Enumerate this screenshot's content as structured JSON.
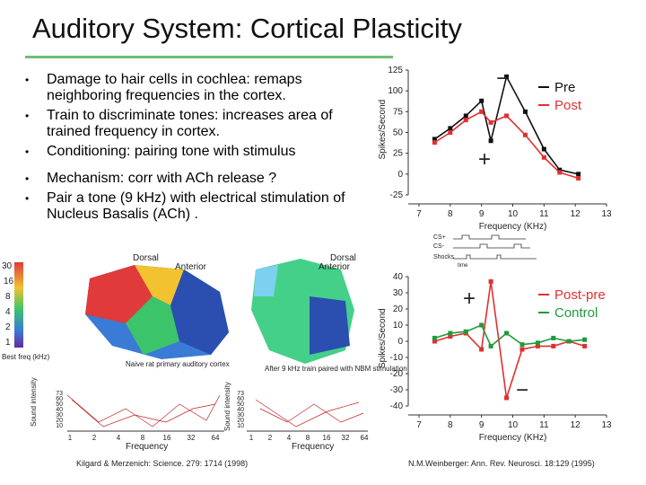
{
  "title": "Auditory System: Cortical Plasticity",
  "bullets": [
    "Damage to hair cells in cochlea: remaps neighboring frequencies in the cortex.",
    "Train to discriminate tones: increases area of trained frequency in cortex.",
    "Conditioning: pairing tone with stimulus",
    "Mechanism: corr with ACh release ?",
    "Pair a tone (9 kHz) with electrical stimulation of Nucleus Basalis (ACh) ."
  ],
  "maps": {
    "orientation": [
      "Dorsal",
      "Anterior"
    ],
    "colorbar_title": "Best freq (kHz)",
    "colorbar_ticks": [
      "30",
      "16",
      "8",
      "4",
      "2",
      "1"
    ],
    "captions": [
      "Naive rat primary auditory cortex",
      "After 9 kHz train paired with NBM stimulation"
    ],
    "tuning_axis": "Frequency",
    "tuning_ylabel": "Sound intensity",
    "tuning_xticks": [
      "1",
      "2",
      "4",
      "8",
      "16",
      "32",
      "64"
    ],
    "tuning_yticks": [
      "73",
      "60",
      "50",
      "40",
      "30",
      "20",
      "10"
    ]
  },
  "protocol": {
    "rows": [
      "CS+",
      "CS-",
      "Shocks"
    ],
    "axis": "time"
  },
  "citations": [
    "Kilgard & Merzenich: Science. 279: 1714 (1998)",
    "N.M.Weinberger: Ann. Rev. Neurosci. 18:129 (1995)"
  ],
  "chart_data": [
    {
      "type": "line",
      "x_label": "Frequency (KHz)",
      "y_label": "Spikes/Second",
      "x": [
        7.5,
        8,
        8.5,
        9,
        9.3,
        9.8,
        10.4,
        11,
        11.5,
        12.1
      ],
      "series": [
        {
          "name": "Pre",
          "color": "#111111",
          "values": [
            42,
            55,
            70,
            88,
            40,
            117,
            75,
            30,
            5,
            0
          ]
        },
        {
          "name": "Post",
          "color": "#e03030",
          "values": [
            38,
            50,
            65,
            75,
            62,
            70,
            47,
            20,
            2,
            -5
          ]
        }
      ],
      "annotations": [
        "−",
        "+"
      ],
      "xlim": [
        7,
        13
      ],
      "xticks": [
        7,
        8,
        9,
        10,
        11,
        12,
        13
      ],
      "ylim": [
        -25,
        125
      ],
      "yticks": [
        -25,
        0,
        25,
        50,
        75,
        100,
        125
      ]
    },
    {
      "type": "line",
      "x_label": "Frequency (KHz)",
      "y_label": "Spikes/Second",
      "x": [
        7.5,
        8,
        8.5,
        9,
        9.3,
        9.8,
        10.3,
        10.8,
        11.3,
        11.8,
        12.3
      ],
      "series": [
        {
          "name": "Post-pre",
          "color": "#e03030",
          "values": [
            0,
            3,
            5,
            -5,
            37,
            -35,
            -5,
            -3,
            -3,
            0,
            -3
          ]
        },
        {
          "name": "Control",
          "color": "#1f9a3a",
          "values": [
            2,
            5,
            6,
            10,
            -3,
            5,
            -2,
            -1,
            2,
            0,
            1
          ]
        }
      ],
      "annotations": [
        "+",
        "−"
      ],
      "xlim": [
        7,
        13
      ],
      "xticks": [
        7,
        8,
        9,
        10,
        11,
        12,
        13
      ],
      "ylim": [
        -40,
        40
      ],
      "yticks": [
        -40,
        -30,
        -20,
        -10,
        0,
        10,
        20,
        30,
        40
      ]
    }
  ]
}
